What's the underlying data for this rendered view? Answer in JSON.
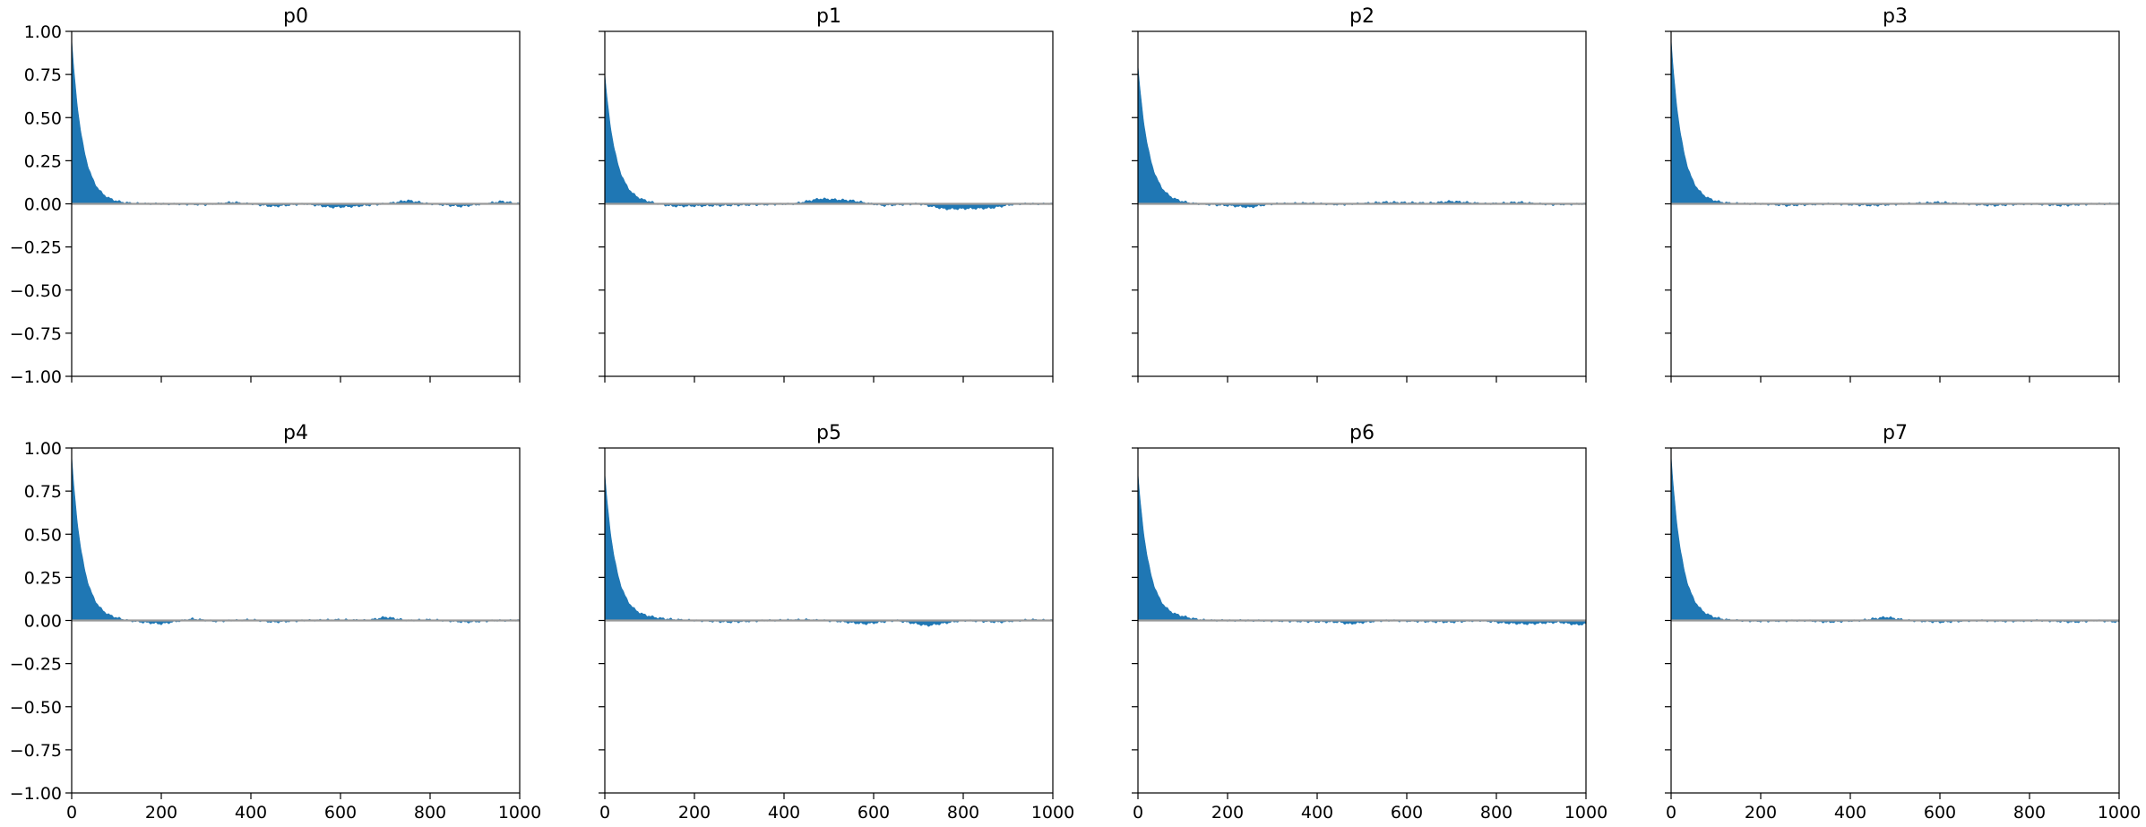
{
  "chart_data": {
    "type": "area",
    "layout": {
      "rows": 2,
      "cols": 4
    },
    "shared_x_axis": true,
    "shared_y_axis": true,
    "xlim": [
      0,
      1000
    ],
    "ylim": [
      -1.0,
      1.0
    ],
    "x_ticks": [
      0,
      200,
      400,
      600,
      800,
      1000
    ],
    "x_tick_labels": [
      "0",
      "200",
      "400",
      "600",
      "800",
      "1000"
    ],
    "y_ticks": [
      1.0,
      0.75,
      0.5,
      0.25,
      0.0,
      -0.25,
      -0.5,
      -0.75,
      -1.0
    ],
    "y_tick_labels": [
      "1.00",
      "0.75",
      "0.50",
      "0.25",
      "0.00",
      "−0.25",
      "−0.50",
      "−0.75",
      "−1.00"
    ],
    "grid": false,
    "fill_color": "#1f77b4",
    "zero_line_color": "#999999",
    "panels": [
      {
        "title": "p0",
        "start": 0.95,
        "decay": 25,
        "points": [
          [
            100,
            0.0
          ],
          [
            200,
            0.0
          ],
          [
            300,
            -0.005
          ],
          [
            360,
            0.01
          ],
          [
            450,
            -0.015
          ],
          [
            520,
            0.0
          ],
          [
            580,
            -0.02
          ],
          [
            630,
            -0.015
          ],
          [
            700,
            0.0
          ],
          [
            750,
            0.02
          ],
          [
            800,
            0.0
          ],
          [
            870,
            -0.015
          ],
          [
            920,
            0.0
          ],
          [
            960,
            0.015
          ],
          [
            1000,
            0.0
          ]
        ]
      },
      {
        "title": "p1",
        "start": 0.75,
        "decay": 25,
        "points": [
          [
            100,
            0.0
          ],
          [
            150,
            -0.015
          ],
          [
            250,
            -0.01
          ],
          [
            350,
            -0.005
          ],
          [
            420,
            0.0
          ],
          [
            480,
            0.03
          ],
          [
            550,
            0.02
          ],
          [
            620,
            -0.01
          ],
          [
            700,
            0.0
          ],
          [
            760,
            -0.03
          ],
          [
            860,
            -0.025
          ],
          [
            920,
            0.0
          ],
          [
            1000,
            0.0
          ]
        ]
      },
      {
        "title": "p2",
        "start": 0.8,
        "decay": 25,
        "points": [
          [
            100,
            0.0
          ],
          [
            200,
            -0.01
          ],
          [
            250,
            -0.02
          ],
          [
            300,
            0.0
          ],
          [
            380,
            0.005
          ],
          [
            450,
            -0.005
          ],
          [
            550,
            0.01
          ],
          [
            650,
            0.005
          ],
          [
            700,
            0.015
          ],
          [
            780,
            0.0
          ],
          [
            850,
            0.01
          ],
          [
            920,
            -0.005
          ],
          [
            1000,
            0.0
          ]
        ]
      },
      {
        "title": "p3",
        "start": 0.95,
        "decay": 25,
        "points": [
          [
            100,
            0.0
          ],
          [
            200,
            0.0
          ],
          [
            260,
            -0.01
          ],
          [
            350,
            0.0
          ],
          [
            450,
            -0.01
          ],
          [
            520,
            0.0
          ],
          [
            600,
            0.01
          ],
          [
            650,
            0.0
          ],
          [
            720,
            -0.01
          ],
          [
            800,
            0.0
          ],
          [
            870,
            -0.01
          ],
          [
            950,
            0.0
          ],
          [
            1000,
            0.0
          ]
        ]
      },
      {
        "title": "p4",
        "start": 0.95,
        "decay": 25,
        "points": [
          [
            100,
            0.0
          ],
          [
            150,
            -0.01
          ],
          [
            200,
            -0.02
          ],
          [
            270,
            0.01
          ],
          [
            320,
            -0.005
          ],
          [
            400,
            0.005
          ],
          [
            450,
            -0.01
          ],
          [
            520,
            0.0
          ],
          [
            600,
            0.005
          ],
          [
            660,
            0.0
          ],
          [
            700,
            0.02
          ],
          [
            750,
            0.0
          ],
          [
            800,
            0.005
          ],
          [
            880,
            -0.01
          ],
          [
            950,
            0.0
          ],
          [
            1000,
            0.0
          ]
        ]
      },
      {
        "title": "p5",
        "start": 0.85,
        "decay": 25,
        "points": [
          [
            100,
            0.01
          ],
          [
            200,
            0.0
          ],
          [
            280,
            -0.01
          ],
          [
            360,
            0.0
          ],
          [
            450,
            0.005
          ],
          [
            520,
            -0.005
          ],
          [
            580,
            -0.02
          ],
          [
            650,
            0.0
          ],
          [
            720,
            -0.03
          ],
          [
            800,
            0.0
          ],
          [
            880,
            -0.01
          ],
          [
            950,
            0.005
          ],
          [
            1000,
            0.0
          ]
        ]
      },
      {
        "title": "p6",
        "start": 0.85,
        "decay": 25,
        "points": [
          [
            100,
            0.01
          ],
          [
            150,
            0.0
          ],
          [
            250,
            0.0
          ],
          [
            350,
            -0.005
          ],
          [
            450,
            -0.01
          ],
          [
            470,
            -0.02
          ],
          [
            550,
            0.0
          ],
          [
            620,
            -0.005
          ],
          [
            700,
            -0.01
          ],
          [
            760,
            0.0
          ],
          [
            820,
            -0.015
          ],
          [
            870,
            -0.02
          ],
          [
            940,
            -0.01
          ],
          [
            980,
            -0.025
          ],
          [
            1000,
            -0.02
          ]
        ]
      },
      {
        "title": "p7",
        "start": 0.95,
        "decay": 25,
        "points": [
          [
            100,
            0.0
          ],
          [
            200,
            -0.005
          ],
          [
            300,
            0.0
          ],
          [
            350,
            -0.01
          ],
          [
            420,
            0.0
          ],
          [
            480,
            0.02
          ],
          [
            530,
            0.0
          ],
          [
            600,
            -0.01
          ],
          [
            680,
            0.0
          ],
          [
            750,
            -0.005
          ],
          [
            820,
            0.0
          ],
          [
            900,
            -0.01
          ],
          [
            950,
            0.0
          ],
          [
            1000,
            -0.01
          ]
        ]
      }
    ]
  }
}
